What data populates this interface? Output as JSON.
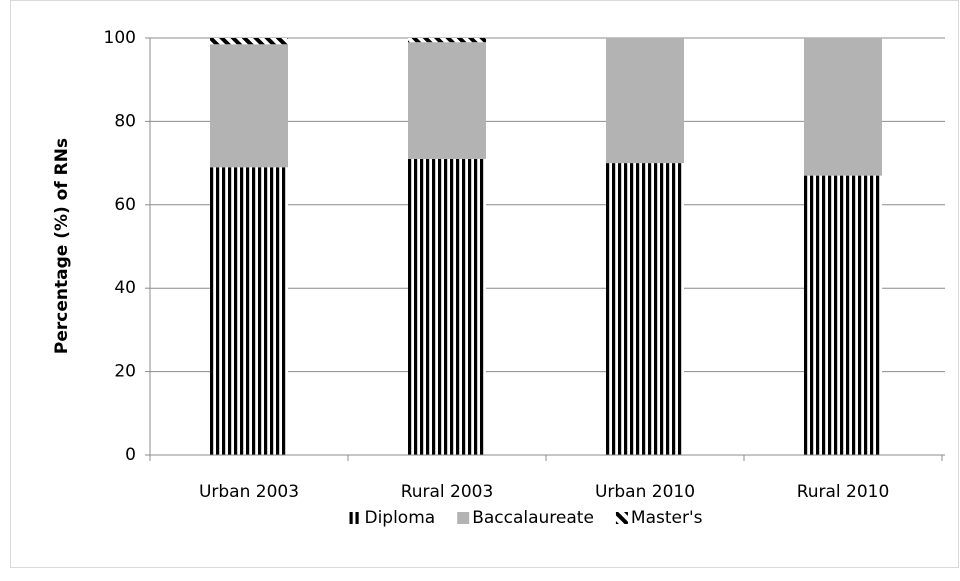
{
  "chart_data": {
    "type": "stacked_bar",
    "y_label": "Percentage (%) of RNs",
    "categories": [
      "Urban 2003",
      "Rural 2003",
      "Urban 2010",
      "Rural 2010"
    ],
    "series": [
      {
        "name": "Diploma",
        "color": "#000000",
        "pattern": "vertical-stripes",
        "values": [
          69,
          71,
          70,
          67
        ]
      },
      {
        "name": "Baccalaureate",
        "color": "#b3b3b3",
        "pattern": "solid",
        "values": [
          29.5,
          28,
          30,
          33
        ]
      },
      {
        "name": "Master's",
        "color": "#000000",
        "pattern": "diagonal-stripes",
        "values": [
          1.5,
          1,
          0,
          0
        ]
      }
    ],
    "ylim": [
      0,
      100
    ],
    "yticks": [
      0,
      20,
      40,
      60,
      80,
      100
    ],
    "grid": true,
    "legend": "bottom"
  }
}
